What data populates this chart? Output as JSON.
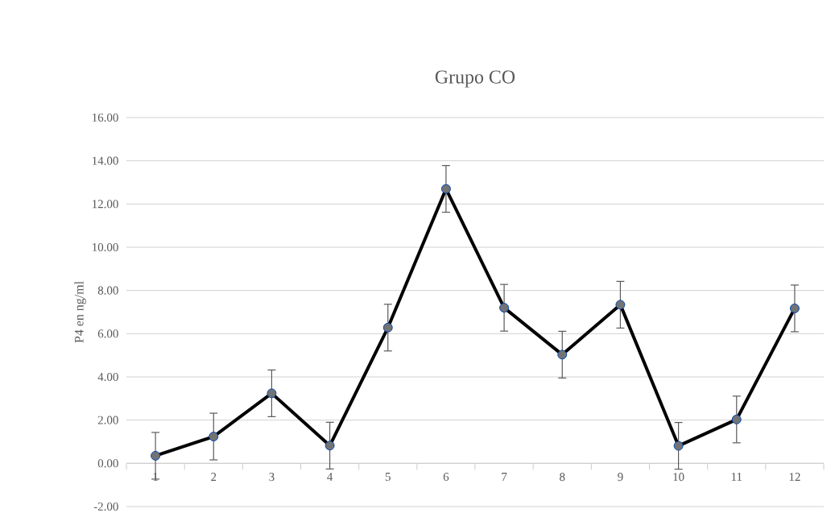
{
  "chart_data": {
    "type": "line",
    "title": "Grupo CO",
    "ylabel": "P4 en ng/ml",
    "categories": [
      "1",
      "2",
      "3",
      "4",
      "5",
      "6",
      "7",
      "8",
      "9",
      "10",
      "11",
      "12"
    ],
    "values": [
      0.35,
      1.24,
      3.24,
      0.82,
      6.28,
      12.7,
      7.2,
      5.03,
      7.34,
      0.81,
      2.03,
      7.17
    ],
    "errors": [
      1.08,
      1.08,
      1.08,
      1.08,
      1.08,
      1.08,
      1.08,
      1.08,
      1.08,
      1.08,
      1.08,
      1.08
    ],
    "color": "#000000",
    "ylim": [
      -2,
      16
    ],
    "yticks": [
      {
        "value": -2,
        "label": "-2.00"
      },
      {
        "value": 0,
        "label": "0.00"
      },
      {
        "value": 2,
        "label": "2.00"
      },
      {
        "value": 4,
        "label": "4.00"
      },
      {
        "value": 6,
        "label": "6.00"
      },
      {
        "value": 8,
        "label": "8.00"
      },
      {
        "value": 10,
        "label": "10.00"
      },
      {
        "value": 12,
        "label": "12.00"
      },
      {
        "value": 14,
        "label": "14.00"
      },
      {
        "value": 16,
        "label": "16.00"
      }
    ],
    "grid": "y",
    "marker": "circle",
    "line_style": "solid"
  }
}
